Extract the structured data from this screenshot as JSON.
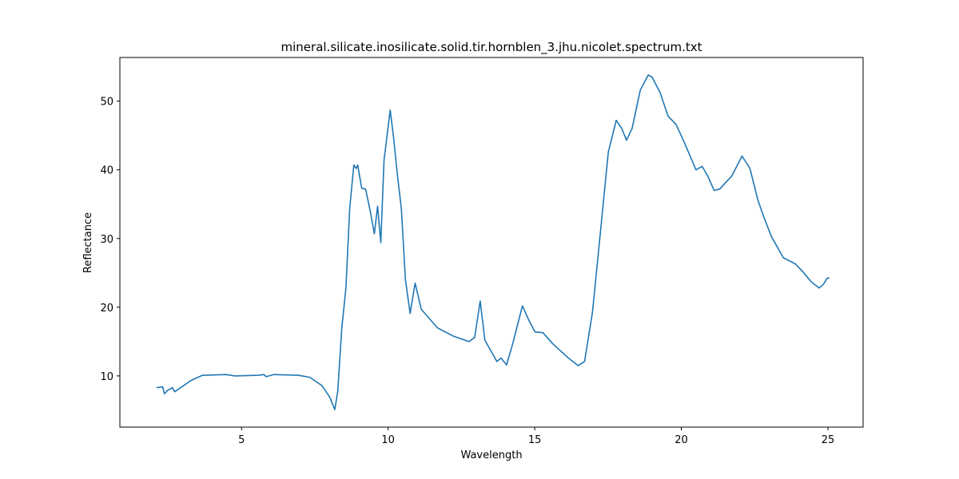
{
  "chart_data": {
    "type": "line",
    "title": "mineral.silicate.inosilicate.solid.tir.hornblen_3.jhu.nicolet.spectrum.txt",
    "x_label": "Wavelength",
    "y_label": "Reflectance",
    "xlim": [
      0.85,
      26.2
    ],
    "ylim": [
      2.55,
      56.35
    ],
    "xticks": [
      5,
      10,
      15,
      20,
      25
    ],
    "yticks": [
      10,
      20,
      30,
      40,
      50
    ],
    "grid": false,
    "series": [
      {
        "color": "#1f77b4",
        "x": [
          2.1,
          2.31,
          2.37,
          2.48,
          2.64,
          2.72,
          2.86,
          3.26,
          3.67,
          4.48,
          4.76,
          5.57,
          5.76,
          5.84,
          6.11,
          6.93,
          7.33,
          7.74,
          8.01,
          8.18,
          8.28,
          8.42,
          8.56,
          8.69,
          8.83,
          8.91,
          8.96,
          9.1,
          9.23,
          9.37,
          9.53,
          9.64,
          9.75,
          9.86,
          10.07,
          10.18,
          10.32,
          10.45,
          10.59,
          10.75,
          10.92,
          11.13,
          11.68,
          12.22,
          12.76,
          12.95,
          13.14,
          13.3,
          13.71,
          13.85,
          14.04,
          14.25,
          14.58,
          14.8,
          15.01,
          15.28,
          15.61,
          16.15,
          16.48,
          16.7,
          16.97,
          17.24,
          17.51,
          17.78,
          17.97,
          18.13,
          18.32,
          18.6,
          18.87,
          19.0,
          19.27,
          19.55,
          19.82,
          20.09,
          20.5,
          20.71,
          20.9,
          21.12,
          21.31,
          21.72,
          22.07,
          22.34,
          22.61,
          22.8,
          23.07,
          23.48,
          23.89,
          24.16,
          24.43,
          24.7,
          24.84,
          24.97,
          25.05
        ],
        "values": [
          8.3,
          8.4,
          7.4,
          7.9,
          8.3,
          7.7,
          8.1,
          9.3,
          10.1,
          10.2,
          10.0,
          10.1,
          10.2,
          9.9,
          10.2,
          10.1,
          9.8,
          8.6,
          6.9,
          5.1,
          7.7,
          17.0,
          22.8,
          34.4,
          40.7,
          40.2,
          40.7,
          37.3,
          37.2,
          34.4,
          30.7,
          34.7,
          29.4,
          41.4,
          48.7,
          44.9,
          39.1,
          34.4,
          24.0,
          19.1,
          23.5,
          19.7,
          17.0,
          15.8,
          15.0,
          15.6,
          20.9,
          15.2,
          12.1,
          12.6,
          11.6,
          14.7,
          20.2,
          18.1,
          16.4,
          16.3,
          14.7,
          12.6,
          11.5,
          12.1,
          19.3,
          30.9,
          42.6,
          47.2,
          46.0,
          44.3,
          46.0,
          51.6,
          53.8,
          53.5,
          51.3,
          47.8,
          46.6,
          44.1,
          40.0,
          40.5,
          39.1,
          37.0,
          37.2,
          39.1,
          42.0,
          40.2,
          35.6,
          33.3,
          30.3,
          27.2,
          26.3,
          25.1,
          23.7,
          22.8,
          23.3,
          24.2,
          24.3
        ]
      }
    ]
  }
}
